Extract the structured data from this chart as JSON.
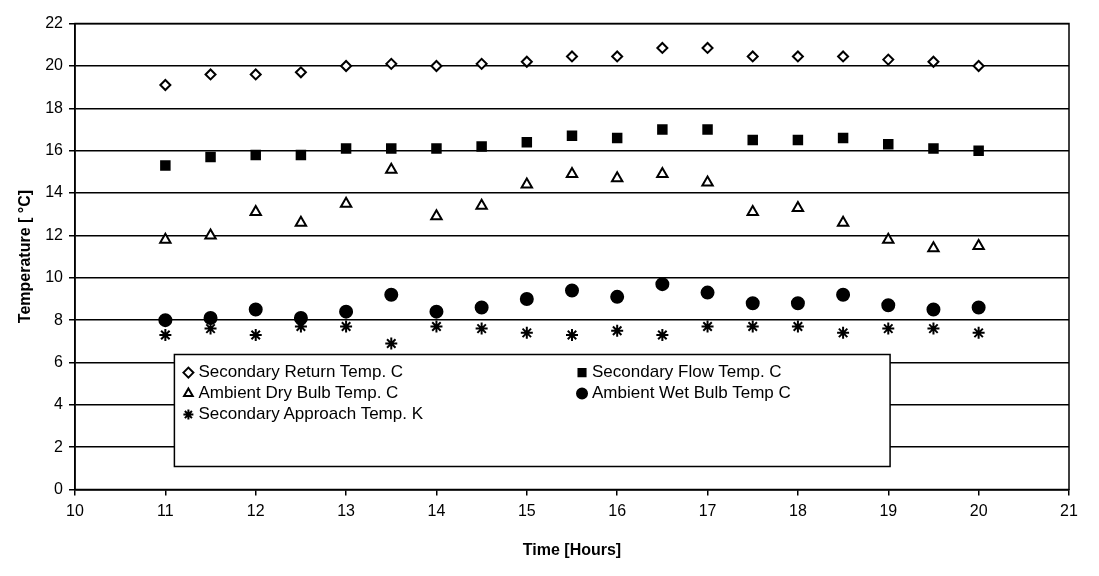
{
  "chart_data": {
    "type": "scatter",
    "xlabel": "Time [Hours]",
    "ylabel": "Temperature [ °C]",
    "x": [
      11,
      11.5,
      12,
      12.5,
      13,
      13.5,
      14,
      14.5,
      15,
      15.5,
      16,
      16.5,
      17,
      17.5,
      18,
      18.5,
      19,
      19.5,
      20
    ],
    "series": [
      {
        "name": "Secondary Return Temp. C",
        "color": "#000000",
        "marker": "diamond",
        "values": [
          19.1,
          19.6,
          19.6,
          19.7,
          20.0,
          20.1,
          20.0,
          20.1,
          20.2,
          20.45,
          20.45,
          20.85,
          20.85,
          20.45,
          20.45,
          20.45,
          20.3,
          20.2,
          20.0
        ]
      },
      {
        "name": "Secondary Flow Temp. C",
        "color": "#000000",
        "marker": "square",
        "values": [
          15.3,
          15.7,
          15.8,
          15.8,
          16.1,
          16.1,
          16.1,
          16.2,
          16.4,
          16.7,
          16.6,
          17.0,
          17.0,
          16.5,
          16.5,
          16.6,
          16.3,
          16.1,
          16.0
        ]
      },
      {
        "name": "Ambient Dry Bulb Temp. C",
        "color": "#000000",
        "marker": "triangle",
        "values": [
          11.8,
          12.0,
          13.1,
          12.6,
          13.5,
          15.1,
          12.9,
          13.4,
          14.4,
          14.9,
          14.7,
          14.9,
          14.5,
          13.1,
          13.3,
          12.6,
          11.8,
          11.4,
          11.5
        ]
      },
      {
        "name": "Ambient Wet Bulb Temp C",
        "color": "#000000",
        "marker": "circle",
        "values": [
          8.0,
          8.1,
          8.5,
          8.1,
          8.4,
          9.2,
          8.4,
          8.6,
          9.0,
          9.4,
          9.1,
          9.7,
          9.3,
          8.8,
          8.8,
          9.2,
          8.7,
          8.5,
          8.6
        ]
      },
      {
        "name": "Secondary Approach Temp. K",
        "color": "#000000",
        "marker": "cross",
        "values": [
          7.3,
          7.6,
          7.3,
          7.7,
          7.7,
          6.9,
          7.7,
          7.6,
          7.4,
          7.3,
          7.5,
          7.3,
          7.7,
          7.7,
          7.7,
          7.4,
          7.6,
          7.6,
          7.4
        ]
      }
    ],
    "xlim": [
      10,
      21
    ],
    "xticks": [
      10,
      11,
      12,
      13,
      14,
      15,
      16,
      17,
      18,
      19,
      20,
      21
    ],
    "ylim": [
      0,
      22
    ],
    "yticks": [
      0,
      2,
      4,
      6,
      8,
      10,
      12,
      14,
      16,
      18,
      20,
      22
    ],
    "grid": "y",
    "legend": "bottom left"
  }
}
